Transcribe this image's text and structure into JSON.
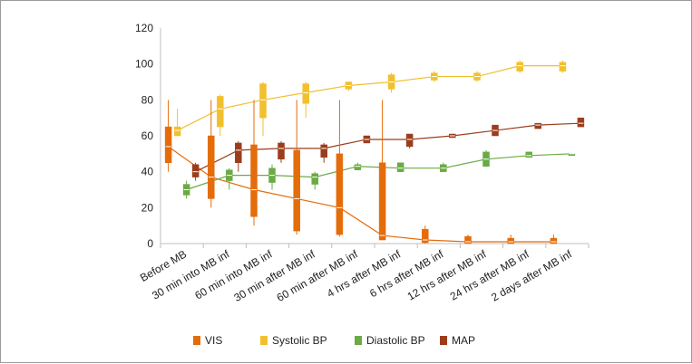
{
  "chart_data": {
    "type": "box-line",
    "categories": [
      "Before MB",
      "30 min into MB inf",
      "60 min into MB inf",
      "30 min after MB inf",
      "60 min after MB inf",
      "4 hrs after MB inf",
      "6 hrs after MB inf",
      "12 hrs after MB inf",
      "24 hrs after MB inf",
      "2 days after MB inf"
    ],
    "ylim": [
      0,
      120
    ],
    "yticks": [
      0,
      20,
      40,
      60,
      80,
      100,
      120
    ],
    "grid": false,
    "legend_position": "bottom",
    "series": [
      {
        "name": "VIS",
        "color": "#e46c0a",
        "line": [
          54,
          37,
          30,
          25,
          20,
          4.5,
          2,
          1,
          1,
          1
        ],
        "boxes": [
          {
            "min": 40,
            "q1": 45,
            "q3": 65,
            "max": 80
          },
          {
            "min": 20,
            "q1": 25,
            "q3": 60,
            "max": 80
          },
          {
            "min": 10,
            "q1": 15,
            "q3": 55,
            "max": 80
          },
          {
            "min": 5,
            "q1": 7,
            "q3": 52,
            "max": 80
          },
          {
            "min": 4,
            "q1": 5,
            "q3": 50,
            "max": 80
          },
          {
            "min": 2,
            "q1": 2,
            "q3": 45,
            "max": 80
          },
          {
            "min": 0,
            "q1": 0.5,
            "q3": 8,
            "max": 10
          },
          {
            "min": 0,
            "q1": 0,
            "q3": 4,
            "max": 5
          },
          {
            "min": 0,
            "q1": 0,
            "q3": 3,
            "max": 5
          },
          {
            "min": 0,
            "q1": 0,
            "q3": 3,
            "max": 5
          }
        ]
      },
      {
        "name": "Systolic BP",
        "color": "#f2c02e",
        "line": [
          63,
          75,
          80,
          84,
          88,
          90,
          93,
          93,
          99,
          99
        ],
        "boxes": [
          {
            "min": 60,
            "q1": 60,
            "q3": 65,
            "max": 75
          },
          {
            "min": 60,
            "q1": 65,
            "q3": 82,
            "max": 83
          },
          {
            "min": 60,
            "q1": 70,
            "q3": 89,
            "max": 90
          },
          {
            "min": 70,
            "q1": 78,
            "q3": 89,
            "max": 90
          },
          {
            "min": 85,
            "q1": 86,
            "q3": 90,
            "max": 90
          },
          {
            "min": 84,
            "q1": 86,
            "q3": 94,
            "max": 95
          },
          {
            "min": 90,
            "q1": 91,
            "q3": 95,
            "max": 96
          },
          {
            "min": 90,
            "q1": 91,
            "q3": 95,
            "max": 96
          },
          {
            "min": 95,
            "q1": 96,
            "q3": 101,
            "max": 102
          },
          {
            "min": 95,
            "q1": 96,
            "q3": 101,
            "max": 102
          }
        ]
      },
      {
        "name": "Diastolic BP",
        "color": "#6aab45",
        "line": [
          30,
          38,
          38,
          37,
          43,
          42,
          42,
          47,
          49,
          50
        ],
        "boxes": [
          {
            "min": 25,
            "q1": 27,
            "q3": 33,
            "max": 35
          },
          {
            "min": 30,
            "q1": 35,
            "q3": 41,
            "max": 42
          },
          {
            "min": 30,
            "q1": 34,
            "q3": 42,
            "max": 44
          },
          {
            "min": 30,
            "q1": 33,
            "q3": 39,
            "max": 40
          },
          {
            "min": 41,
            "q1": 41,
            "q3": 44,
            "max": 45
          },
          {
            "min": 40,
            "q1": 40,
            "q3": 45,
            "max": 45
          },
          {
            "min": 40,
            "q1": 40,
            "q3": 44,
            "max": 45
          },
          {
            "min": 43,
            "q1": 43,
            "q3": 51,
            "max": 52
          },
          {
            "min": 48,
            "q1": 48,
            "q3": 51,
            "max": 51
          },
          {
            "min": 50,
            "q1": 50,
            "q3": 50,
            "max": 50
          }
        ]
      },
      {
        "name": "MAP",
        "color": "#9b3d1b",
        "line": [
          40,
          52,
          53,
          53,
          58,
          58,
          60,
          63,
          66,
          67
        ],
        "boxes": [
          {
            "min": 35,
            "q1": 37,
            "q3": 44,
            "max": 45
          },
          {
            "min": 40,
            "q1": 45,
            "q3": 56,
            "max": 57
          },
          {
            "min": 45,
            "q1": 47,
            "q3": 56,
            "max": 57
          },
          {
            "min": 45,
            "q1": 48,
            "q3": 55,
            "max": 56
          },
          {
            "min": 56,
            "q1": 56,
            "q3": 60,
            "max": 60
          },
          {
            "min": 53,
            "q1": 54,
            "q3": 61,
            "max": 61
          },
          {
            "min": 59,
            "q1": 59,
            "q3": 61,
            "max": 61
          },
          {
            "min": 60,
            "q1": 60,
            "q3": 66,
            "max": 66
          },
          {
            "min": 64,
            "q1": 64,
            "q3": 67,
            "max": 67
          },
          {
            "min": 65,
            "q1": 65,
            "q3": 70,
            "max": 70
          }
        ]
      }
    ]
  }
}
